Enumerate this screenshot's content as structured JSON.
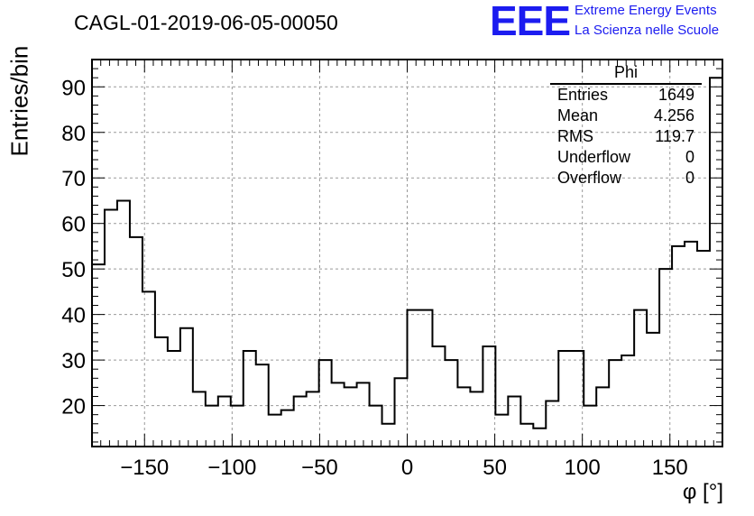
{
  "header": {
    "title": "CAGL-01-2019-06-05-00050",
    "logo": "EEE",
    "org_line1": "Extreme Energy Events",
    "org_line2": "La Scienza nelle Scuole"
  },
  "stats_box": {
    "title": "Phi",
    "rows": [
      {
        "label": "Entries",
        "value": "1649"
      },
      {
        "label": "Mean",
        "value": "4.256"
      },
      {
        "label": "RMS",
        "value": "119.7"
      },
      {
        "label": "Underflow",
        "value": "0"
      },
      {
        "label": "Overflow",
        "value": "0"
      }
    ]
  },
  "chart_data": {
    "type": "histogram",
    "title": "CAGL-01-2019-06-05-00050",
    "xlabel": "φ [°]",
    "ylabel": "Entries/bin",
    "xlim": [
      -180,
      180
    ],
    "ylim": [
      11,
      96
    ],
    "grid": true,
    "bin_width": 7.2,
    "x_ticks": [
      -150,
      -100,
      -50,
      0,
      50,
      100,
      150
    ],
    "y_ticks": [
      20,
      30,
      40,
      50,
      60,
      70,
      80,
      90
    ],
    "x_tick_labels": [
      "−150",
      "−100",
      "−50",
      "0",
      "50",
      "100",
      "150"
    ],
    "y_tick_labels": [
      "20",
      "30",
      "40",
      "50",
      "60",
      "70",
      "80",
      "90"
    ],
    "counts": [
      51,
      63,
      65,
      57,
      45,
      35,
      32,
      37,
      23,
      20,
      22,
      20,
      32,
      29,
      18,
      19,
      22,
      23,
      30,
      25,
      24,
      25,
      20,
      16,
      26,
      41,
      41,
      33,
      30,
      24,
      23,
      33,
      18,
      22,
      16,
      15,
      21,
      32,
      32,
      20,
      24,
      30,
      31,
      41,
      36,
      50,
      55,
      56,
      54,
      92
    ],
    "line_color": "#000000",
    "grid_color": "#999999"
  }
}
